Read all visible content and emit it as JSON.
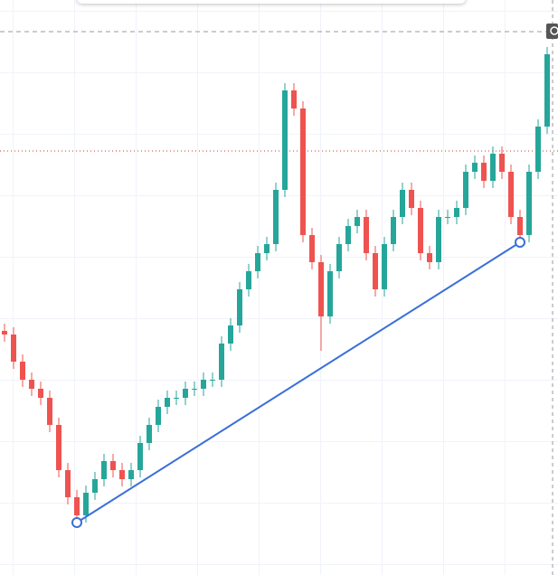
{
  "chart_data": {
    "type": "candlestick",
    "ylim": [
      0,
      636
    ],
    "up_color": "#26a69a",
    "down_color": "#ef5350",
    "open": [
      270,
      266,
      236,
      216,
      206,
      196,
      166,
      116,
      86,
      66,
      91,
      106,
      126,
      116,
      106,
      116,
      146,
      166,
      186,
      196,
      196,
      206,
      206,
      216,
      216,
      256,
      276,
      316,
      336,
      356,
      366,
      426,
      536,
      516,
      376,
      346,
      286,
      336,
      366,
      386,
      396,
      356,
      316,
      366,
      396,
      426,
      406,
      356,
      346,
      396,
      396,
      406,
      446,
      456,
      436,
      466,
      446,
      396,
      376,
      446,
      496
    ],
    "high": [
      278,
      274,
      244,
      224,
      214,
      204,
      174,
      124,
      94,
      99,
      114,
      134,
      134,
      124,
      124,
      154,
      174,
      194,
      204,
      204,
      214,
      214,
      224,
      224,
      264,
      284,
      324,
      344,
      364,
      374,
      434,
      544,
      544,
      524,
      384,
      354,
      344,
      374,
      394,
      404,
      404,
      364,
      374,
      404,
      434,
      434,
      414,
      364,
      404,
      404,
      414,
      454,
      464,
      464,
      474,
      474,
      454,
      404,
      454,
      504,
      584
    ],
    "low": [
      258,
      228,
      208,
      198,
      188,
      158,
      108,
      78,
      58,
      58,
      83,
      98,
      108,
      98,
      98,
      108,
      138,
      158,
      178,
      188,
      188,
      198,
      198,
      208,
      208,
      248,
      268,
      308,
      328,
      348,
      358,
      418,
      508,
      368,
      338,
      248,
      278,
      328,
      358,
      378,
      348,
      308,
      308,
      358,
      388,
      398,
      348,
      338,
      338,
      388,
      388,
      398,
      438,
      428,
      428,
      438,
      388,
      368,
      368,
      438,
      488
    ],
    "close": [
      266,
      236,
      216,
      206,
      196,
      166,
      116,
      86,
      66,
      91,
      106,
      126,
      116,
      106,
      116,
      146,
      166,
      186,
      196,
      196,
      206,
      206,
      216,
      216,
      256,
      276,
      316,
      336,
      356,
      366,
      426,
      536,
      516,
      376,
      346,
      286,
      336,
      366,
      386,
      396,
      356,
      316,
      366,
      396,
      426,
      406,
      356,
      346,
      396,
      396,
      406,
      446,
      456,
      436,
      466,
      446,
      396,
      376,
      446,
      496,
      576
    ],
    "price_lines": [
      601,
      469
    ],
    "trendline": {
      "color": "#3a6fd8",
      "index": [
        8,
        57
      ],
      "value": [
        58,
        368
      ]
    }
  }
}
